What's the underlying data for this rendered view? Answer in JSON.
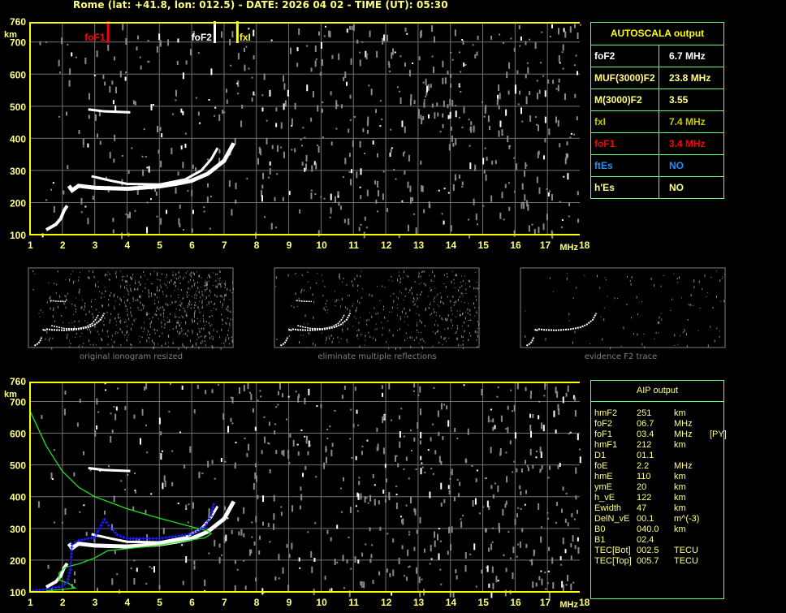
{
  "title": "Rome (lat: +41.8, lon: 012.5) - DATE: 2026 04 02 - TIME (UT): 05:30",
  "chart_data": {
    "type": "scatter",
    "xlabel": "MHz",
    "ylabel": "km",
    "xlim": [
      1,
      18
    ],
    "ylim": [
      100,
      760
    ],
    "xticks": [
      "1",
      "2",
      "3",
      "4",
      "5",
      "6",
      "7",
      "8",
      "9",
      "10",
      "11",
      "12",
      "13",
      "14",
      "15",
      "16",
      "17",
      "18"
    ],
    "yticks": [
      "100",
      "200",
      "300",
      "400",
      "500",
      "600",
      "700",
      "760"
    ],
    "grid": true,
    "markers": [
      {
        "label": "foF1",
        "freq": 3.4,
        "color": "#ff0000"
      },
      {
        "label": "foF2",
        "freq": 6.7,
        "color": "#ffffff"
      },
      {
        "label": "fxI",
        "freq": 7.4,
        "color": "#ffff00"
      }
    ],
    "traces": {
      "o_trace": [
        [
          2.2,
          252
        ],
        [
          2.3,
          238
        ],
        [
          2.5,
          252
        ],
        [
          3,
          246
        ],
        [
          4,
          243
        ],
        [
          5,
          250
        ],
        [
          5.5,
          258
        ],
        [
          6,
          268
        ],
        [
          6.5,
          290
        ],
        [
          7,
          330
        ],
        [
          7.3,
          385
        ]
      ],
      "x_trace": [
        [
          2.9,
          282
        ],
        [
          3.5,
          268
        ],
        [
          4,
          258
        ],
        [
          5,
          256
        ],
        [
          5.8,
          272
        ],
        [
          6.3,
          300
        ],
        [
          6.6,
          335
        ],
        [
          6.8,
          370
        ]
      ],
      "e_trace": [
        [
          1.5,
          115
        ],
        [
          1.8,
          132
        ],
        [
          1.95,
          150
        ],
        [
          2.05,
          175
        ],
        [
          2.15,
          190
        ]
      ],
      "second_hop": [
        [
          2.8,
          490
        ],
        [
          3.3,
          484
        ],
        [
          4.1,
          481
        ]
      ]
    },
    "profile": [
      [
        1,
        670
      ],
      [
        1.5,
        560
      ],
      [
        2,
        480
      ],
      [
        2.5,
        430
      ],
      [
        3,
        400
      ],
      [
        4,
        362
      ],
      [
        5,
        332
      ],
      [
        6,
        305
      ],
      [
        6.5,
        292
      ],
      [
        6.6,
        283
      ],
      [
        6.4,
        270
      ],
      [
        6,
        264
      ],
      [
        5,
        247
      ],
      [
        4,
        236
      ],
      [
        3.4,
        230
      ],
      [
        3,
        207
      ],
      [
        2.5,
        188
      ],
      [
        2.1,
        178
      ],
      [
        1.9,
        160
      ],
      [
        1.9,
        138
      ],
      [
        2.2,
        126
      ],
      [
        2.4,
        112
      ],
      [
        2,
        108
      ],
      [
        1.5,
        103
      ]
    ],
    "aip_trace": [
      [
        1,
        103
      ],
      [
        1.5,
        108
      ],
      [
        2,
        118
      ],
      [
        2.15,
        130
      ],
      [
        2.25,
        170
      ],
      [
        2.3,
        250
      ],
      [
        2.5,
        262
      ],
      [
        3,
        272
      ],
      [
        3.3,
        328
      ],
      [
        3.5,
        300
      ],
      [
        3.7,
        280
      ],
      [
        4,
        268
      ],
      [
        5,
        268
      ],
      [
        6,
        282
      ],
      [
        6.4,
        305
      ],
      [
        6.6,
        340
      ],
      [
        6.7,
        385
      ]
    ]
  },
  "autoscala": {
    "title": "AUTOSCALA output",
    "rows": [
      {
        "key": "foF2",
        "value": "6.7 MHz",
        "color": "#ffffff"
      },
      {
        "key": "MUF(3000)F2",
        "value": "23.8 MHz",
        "color": "#ffff80"
      },
      {
        "key": "M(3000)F2",
        "value": "3.55",
        "color": "#ffff80"
      },
      {
        "key": "fxI",
        "value": "7.4 MHz",
        "color": "#c8c800"
      },
      {
        "key": "foF1",
        "value": "3.4 MHz",
        "color": "#ff0000"
      },
      {
        "key": "ftEs",
        "value": "NO",
        "color": "#1e90ff"
      },
      {
        "key": "h'Es",
        "value": "NO",
        "color": "#ffff80"
      }
    ]
  },
  "thumbnails": [
    "original ionogram resized",
    "eliminate multiple reflections",
    "evidence F2 trace"
  ],
  "aip": {
    "title": "AIP output",
    "rows": [
      [
        "hmF2",
        "251",
        "km",
        ""
      ],
      [
        "foF2",
        "06.7",
        "MHz",
        ""
      ],
      [
        "foF1",
        "03.4",
        "MHz",
        "[PY]"
      ],
      [
        "hmF1",
        "212",
        "km",
        ""
      ],
      [
        "D1",
        "01.1",
        "",
        ""
      ],
      [
        "foE",
        "2.2",
        "MHz",
        ""
      ],
      [
        "hmE",
        "110",
        "km",
        ""
      ],
      [
        "ymE",
        "20",
        "km",
        ""
      ],
      [
        "h_vE",
        "122",
        "km",
        ""
      ],
      [
        "Ewidth",
        "47",
        "km",
        ""
      ],
      [
        "DelN_vE",
        "00.1",
        "m^(-3)",
        ""
      ],
      [
        "B0",
        "040.0",
        "km",
        ""
      ],
      [
        "B1",
        "02.4",
        "",
        ""
      ],
      [
        "TEC[Bot]",
        "002.5",
        "TECU",
        ""
      ],
      [
        "TEC[Top]",
        "005.7",
        "TECU",
        ""
      ]
    ]
  }
}
